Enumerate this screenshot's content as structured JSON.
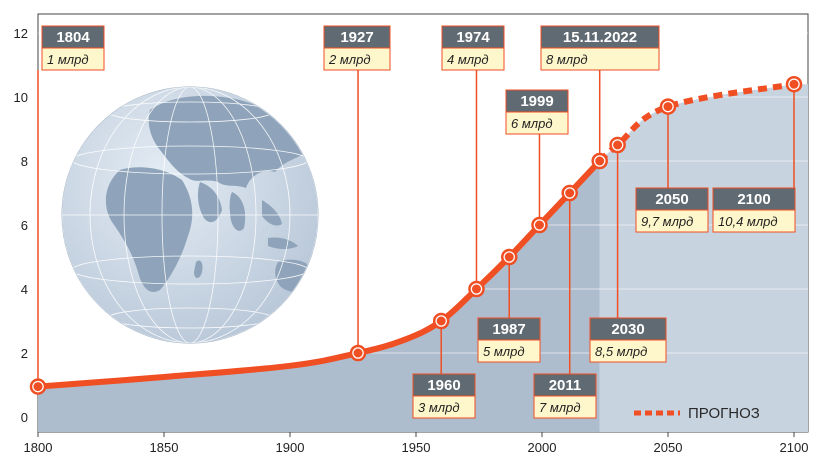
{
  "chart_data": {
    "type": "line",
    "title": "",
    "xlabel": "",
    "ylabel": "",
    "xlim": [
      1800,
      2100
    ],
    "ylim": [
      0,
      12
    ],
    "x_ticks": [
      "1800",
      "1850",
      "1900",
      "1950",
      "2000",
      "2050",
      "2100"
    ],
    "y_ticks": [
      "0",
      "2",
      "4",
      "6",
      "8",
      "10",
      "12"
    ],
    "grid": "horizontal",
    "series": [
      {
        "name": "",
        "style": "solid",
        "points": [
          {
            "x": 1800,
            "y": 0.95
          },
          {
            "x": 1927,
            "y": 2
          },
          {
            "x": 1960,
            "y": 3
          },
          {
            "x": 1974,
            "y": 4
          },
          {
            "x": 1987,
            "y": 5
          },
          {
            "x": 1999,
            "y": 6
          },
          {
            "x": 2011,
            "y": 7
          },
          {
            "x": 2022.9,
            "y": 8
          }
        ]
      },
      {
        "name": "ПРОГНОЗ",
        "style": "dashed",
        "points": [
          {
            "x": 2022.9,
            "y": 8
          },
          {
            "x": 2030,
            "y": 8.5
          },
          {
            "x": 2050,
            "y": 9.7
          },
          {
            "x": 2100,
            "y": 10.4
          }
        ]
      }
    ],
    "annotations": [
      {
        "date": "1804",
        "value": "1 млрд",
        "x": 1800,
        "y": 0.95
      },
      {
        "date": "1927",
        "value": "2 млрд",
        "x": 1927,
        "y": 2
      },
      {
        "date": "1960",
        "value": "3 млрд",
        "x": 1960,
        "y": 3
      },
      {
        "date": "1974",
        "value": "4 млрд",
        "x": 1974,
        "y": 4
      },
      {
        "date": "1987",
        "value": "5 млрд",
        "x": 1987,
        "y": 5
      },
      {
        "date": "1999",
        "value": "6 млрд",
        "x": 1999,
        "y": 6
      },
      {
        "date": "2011",
        "value": "7 млрд",
        "x": 2011,
        "y": 7
      },
      {
        "date": "15.11.2022",
        "value": "8 млрд",
        "x": 2022.9,
        "y": 8
      },
      {
        "date": "2030",
        "value": "8,5 млрд",
        "x": 2030,
        "y": 8.5
      },
      {
        "date": "2050",
        "value": "9,7 млрд",
        "x": 2050,
        "y": 9.7
      },
      {
        "date": "2100",
        "value": "10,4 млрд",
        "x": 2100,
        "y": 10.4
      }
    ],
    "legend": {
      "label": "ПРОГНОЗ",
      "position": "bottom-right"
    },
    "colors": {
      "line": "#f04e23",
      "area_history": "#aebdce",
      "area_forecast": "#c8d3e0",
      "label_header": "#606a72",
      "label_body": "#fff7cc",
      "globe_ocean": "#cdd9e6",
      "globe_land": "#8fa4ba"
    }
  }
}
